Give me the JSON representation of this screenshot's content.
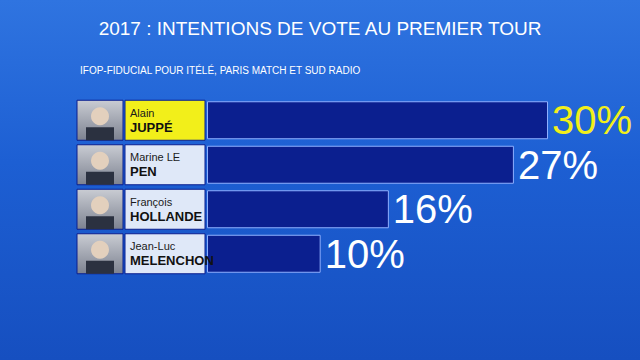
{
  "chart_data": {
    "type": "bar",
    "orientation": "horizontal",
    "title": "2017 : INTENTIONS DE VOTE AU PREMIER TOUR",
    "subtitle": "IFOP-FIDUCIAL POUR ITÉLÉ, PARIS MATCH ET SUD RADIO",
    "categories": [
      "Alain JUPPÉ",
      "Marine LE PEN",
      "François HOLLANDE",
      "Jean-Luc MELENCHON"
    ],
    "values": [
      30,
      27,
      16,
      10
    ],
    "value_labels": [
      "30%",
      "27%",
      "16%",
      "10%"
    ],
    "data_labels": true,
    "color": "#0b1f8f",
    "xlim": [
      0,
      30
    ],
    "grid": false,
    "tick_labels": false
  }
}
